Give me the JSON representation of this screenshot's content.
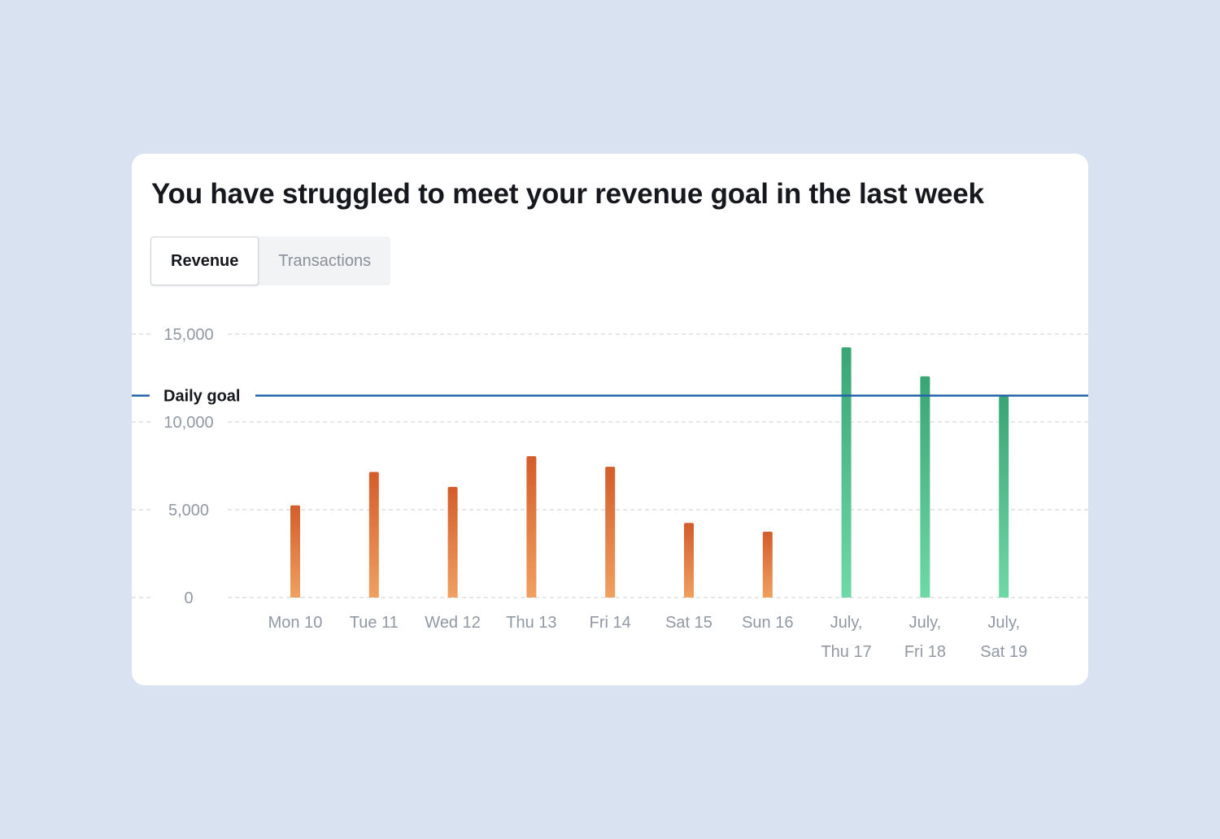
{
  "card": {
    "title": "You have struggled to meet your revenue goal in the last week"
  },
  "tabs": [
    {
      "label": "Revenue",
      "active": true
    },
    {
      "label": "Transactions",
      "active": false
    }
  ],
  "chart_data": {
    "type": "bar",
    "title": "You have struggled to meet your revenue goal in the last week",
    "categories": [
      [
        "Mon 10"
      ],
      [
        "Tue 11"
      ],
      [
        "Wed 12"
      ],
      [
        "Thu 13"
      ],
      [
        "Fri 14"
      ],
      [
        "Sat 15"
      ],
      [
        "Sun 16"
      ],
      [
        "July,",
        "Thu 17"
      ],
      [
        "July,",
        "Fri 18"
      ],
      [
        "July,",
        "Sat 19"
      ]
    ],
    "values": [
      5250,
      7150,
      6300,
      8050,
      7450,
      4250,
      3750,
      14250,
      12600,
      11450
    ],
    "ylim": [
      0,
      15000
    ],
    "yticks": [
      0,
      5000,
      10000,
      15000
    ],
    "ytick_labels": [
      "0",
      "5,000",
      "10,000",
      "15,000"
    ],
    "goal": {
      "label": "Daily goal",
      "value": 11500
    },
    "grid": true,
    "colors": {
      "below_goal_top": "#d35d2c",
      "below_goal_bottom": "#f0a060",
      "above_goal_top": "#3aa574",
      "above_goal_bottom": "#6fd9a6",
      "goal_line": "#2062a8",
      "grid": "#d4d7dc"
    }
  }
}
